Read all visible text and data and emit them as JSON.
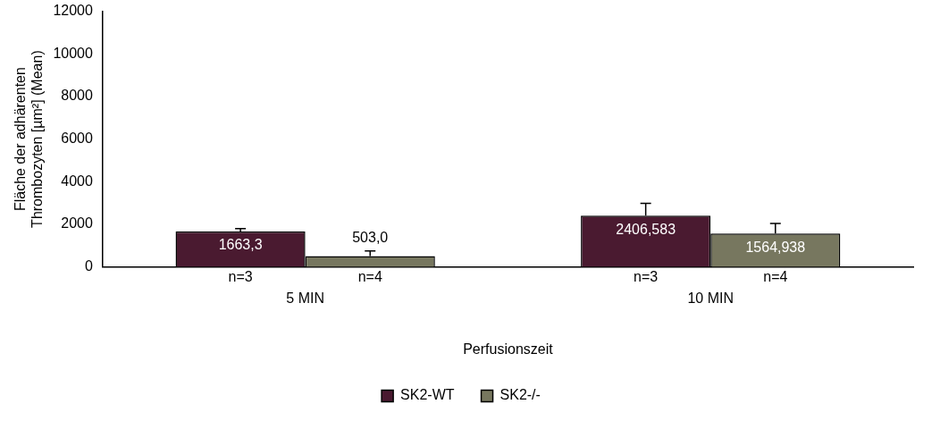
{
  "chart_data": {
    "type": "bar",
    "xlabel": "Perfusionszeit",
    "ylabel": "Fläche der adhärenten Thrombozyten [µm²] (Mean)",
    "categories": [
      "5 MIN",
      "10 MIN"
    ],
    "series": [
      {
        "name": "SK2-WT",
        "color": "#4a1a30",
        "values": [
          1663.3,
          2406.583
        ],
        "errors": [
          [
            1663.3,
            1800
          ],
          [
            2406.583,
            2980
          ]
        ],
        "value_labels": [
          "1663,3",
          "2406,583"
        ]
      },
      {
        "name": "SK2-/-",
        "color": "#77775f",
        "values": [
          503.0,
          1564.938
        ],
        "errors": [
          [
            503.0,
            750
          ],
          [
            1564.938,
            2040
          ]
        ],
        "value_labels": [
          "503,0",
          "1564,938"
        ]
      }
    ],
    "annotations": [
      "n=3",
      "n=4",
      "n=3",
      "n=4"
    ],
    "ylim": [
      0,
      12000
    ],
    "yticks": [
      0,
      2000,
      4000,
      6000,
      8000,
      10000,
      12000
    ],
    "grid": false,
    "legend": "bottom"
  }
}
